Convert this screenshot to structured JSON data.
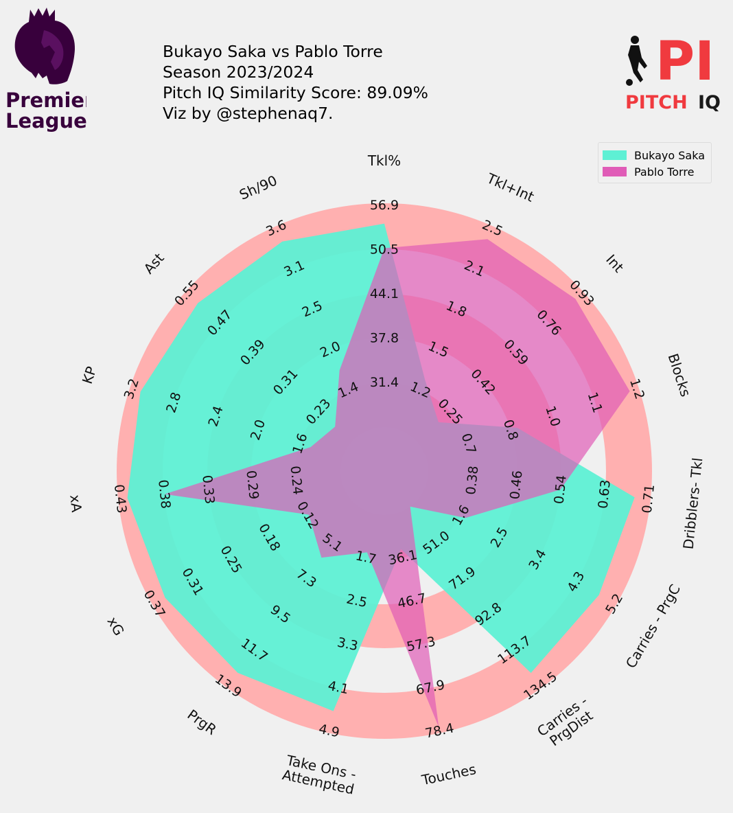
{
  "header": {
    "title_line1": "Bukayo Saka vs Pablo Torre",
    "title_line2": "Season 2023/2024",
    "title_line3": "Pitch IQ Similarity Score: 89.09%",
    "title_line4": "Viz by @stephenaq7."
  },
  "logos": {
    "left_text_line1": "Premier",
    "left_text_line2": "League",
    "right_mark": "PI",
    "right_text_a": "PITCH",
    "right_text_b": "IQ",
    "right_colors": {
      "red": "#f03a3f",
      "dark": "#1a1a1a"
    },
    "left_color": "#38003c"
  },
  "legend": {
    "items": [
      {
        "label": "Bukayo Saka",
        "color": "#5ef0d4"
      },
      {
        "label": "Pablo Torre",
        "color": "#e05cb7"
      }
    ]
  },
  "chart_data": {
    "type": "radar",
    "params": [
      "Tkl%",
      "Tkl+Int",
      "Int",
      "Blocks",
      "Dribblers- Tkl",
      "Carries - PrgC",
      "Carries - PrgDist",
      "Touches",
      "Take Ons - Attempted",
      "PrgR",
      "xG",
      "xA",
      "KP",
      "Ast",
      "Sh/90"
    ],
    "param_labels": [
      [
        "Tkl%"
      ],
      [
        "Tkl+Int"
      ],
      [
        "Int"
      ],
      [
        "Blocks"
      ],
      [
        "Dribblers- Tkl"
      ],
      [
        "Carries - PrgC"
      ],
      [
        "Carries -",
        "PrgDist"
      ],
      [
        "Touches"
      ],
      [
        "Take Ons -",
        "Attempted"
      ],
      [
        "PrgR"
      ],
      [
        "xG"
      ],
      [
        "xA"
      ],
      [
        "KP"
      ],
      [
        "Ast"
      ],
      [
        "Sh/90"
      ]
    ],
    "ring_ticks": [
      [
        "31.4",
        "37.8",
        "44.1",
        "50.5",
        "56.9"
      ],
      [
        "1.2",
        "1.5",
        "1.8",
        "2.1",
        "2.5"
      ],
      [
        "0.25",
        "0.42",
        "0.59",
        "0.76",
        "0.93"
      ],
      [
        "0.7",
        "0.8",
        "1.0",
        "1.1",
        "1.2"
      ],
      [
        "0.38",
        "0.46",
        "0.54",
        "0.63",
        "0.71"
      ],
      [
        "1.6",
        "2.5",
        "3.4",
        "4.3",
        "5.2"
      ],
      [
        "51.0",
        "71.9",
        "92.8",
        "113.7",
        "134.5"
      ],
      [
        "36.1",
        "46.7",
        "57.3",
        "67.9",
        "78.4"
      ],
      [
        "1.7",
        "2.5",
        "3.3",
        "4.1",
        "4.9"
      ],
      [
        "5.1",
        "7.3",
        "9.5",
        "11.7",
        "13.9"
      ],
      [
        "0.12",
        "0.18",
        "0.25",
        "0.31",
        "0.37"
      ],
      [
        "0.24",
        "0.29",
        "0.33",
        "0.38",
        "0.43"
      ],
      [
        "1.6",
        "2.0",
        "2.4",
        "2.8",
        "3.2"
      ],
      [
        "0.23",
        "0.31",
        "0.39",
        "0.47",
        "0.55"
      ],
      [
        "1.4",
        "2.0",
        "2.5",
        "3.1",
        "3.6"
      ]
    ],
    "range_min": [
      25.0,
      0.9,
      0.08,
      0.5,
      0.29,
      0.7,
      30.1,
      25.5,
      0.9,
      2.9,
      0.06,
      0.19,
      1.2,
      0.15,
      0.9
    ],
    "range_max": [
      56.9,
      2.5,
      0.93,
      1.2,
      0.71,
      5.2,
      134.5,
      78.4,
      4.9,
      13.9,
      0.37,
      0.43,
      3.2,
      0.55,
      3.6
    ],
    "series": [
      {
        "name": "Bukayo Saka",
        "color": "#5ef0d4",
        "values": [
          54.0,
          1.3,
          0.19,
          0.8,
          0.68,
          4.8,
          126.0,
          34.0,
          4.5,
          13.0,
          0.35,
          0.42,
          3.1,
          0.52,
          3.4
        ]
      },
      {
        "name": "Pablo Torre",
        "color": "#e05cb7",
        "values": [
          50.5,
          2.4,
          0.89,
          1.17,
          0.54,
          1.7,
          29.0,
          77.0,
          1.6,
          6.0,
          0.12,
          0.38,
          1.5,
          0.19,
          1.7
        ]
      }
    ],
    "ring_colors": [
      "#ffb0b0",
      "#5ef0d4",
      "#5ef0d4"
    ],
    "legend_position": "top-right"
  }
}
